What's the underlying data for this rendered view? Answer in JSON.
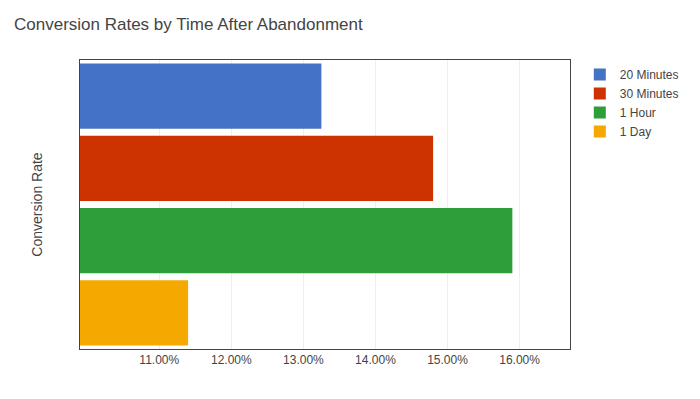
{
  "chart_data": {
    "type": "bar",
    "orientation": "horizontal",
    "title": "Conversion Rates by Time After Abandonment",
    "ylabel": "Conversion Rate",
    "categories": [
      null,
      null,
      null,
      null
    ],
    "series": [
      {
        "name": "20 Minutes",
        "color": "#4472C4",
        "values": [
          0.1325,
          null,
          null,
          null
        ]
      },
      {
        "name": "30 Minutes",
        "color": "#CC3300",
        "values": [
          null,
          0.148,
          null,
          null
        ]
      },
      {
        "name": "1 Hour",
        "color": "#2E9E3A",
        "values": [
          null,
          null,
          0.159,
          null
        ]
      },
      {
        "name": "1 Day",
        "color": "#F4A800",
        "values": [
          null,
          null,
          null,
          0.114
        ]
      }
    ],
    "xlim": [
      0.099,
      0.167
    ],
    "xticks": [
      {
        "value": 0.11,
        "label": "11.00%"
      },
      {
        "value": 0.12,
        "label": "12.00%"
      },
      {
        "value": 0.13,
        "label": "13.00%"
      },
      {
        "value": 0.14,
        "label": "14.00%"
      },
      {
        "value": 0.15,
        "label": "15.00%"
      },
      {
        "value": 0.16,
        "label": "16.00%"
      }
    ],
    "grid": true,
    "legend": "right"
  }
}
